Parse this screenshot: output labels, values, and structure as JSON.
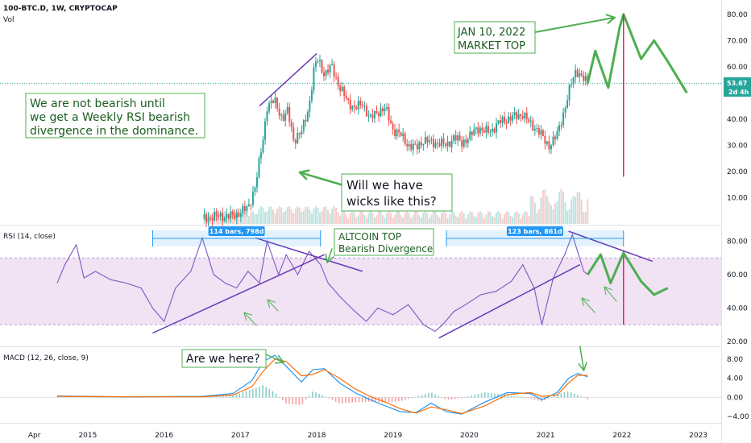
{
  "header": {
    "symbol_title": "100-BTC.D, 1W, CRYPTOCAP",
    "volume_label": "Vol"
  },
  "price_badge": {
    "value": "53.67",
    "timer": "2d 4h",
    "color": "#26a69a"
  },
  "colors": {
    "up": "#26a69a",
    "down": "#ef5350",
    "rsi_line": "#7e57c2",
    "rsi_band": "#e1bee7",
    "macd_line": "#2196f3",
    "signal_line": "#ff6d00",
    "annotation_green": "#4caf50",
    "trend_purple": "#673ab7",
    "market_top_red": "#e91e63"
  },
  "annotations": {
    "not_bearish": [
      "We are not bearish until",
      "we get a Weekly RSI bearish",
      "divergence in the dominance."
    ],
    "market_top": [
      "JAN 10, 2022",
      "MARKET TOP"
    ],
    "wicks": [
      "Will we have",
      "wicks like this?"
    ],
    "altcoin_top": [
      "ALTCOIN TOP",
      "Bearish Divergence"
    ],
    "are_we_here": "Are we here?"
  },
  "range_tags": {
    "first": "114 bars, 798d",
    "second": "123 bars, 861d"
  },
  "chart_data": [
    {
      "type": "line",
      "pane": "price",
      "title": "100-BTC.D, 1W, CRYPTOCAP",
      "y_ticks": [
        "80.00",
        "70.00",
        "60.00",
        "50.00",
        "40.00",
        "30.00",
        "20.00",
        "10.00"
      ],
      "y_tick_values": [
        80,
        70,
        60,
        50,
        40,
        30,
        20,
        10
      ],
      "ylim": [
        0,
        83
      ],
      "x_ticks": [
        "Apr",
        "2015",
        "2016",
        "2017",
        "2018",
        "2019",
        "2020",
        "2021",
        "2022",
        "2023"
      ],
      "x_tick_values": [
        2014.3,
        2015,
        2016,
        2017,
        2018,
        2019,
        2020,
        2021,
        2022,
        2023
      ],
      "xlim": [
        2013.85,
        2023.3
      ],
      "series": [
        {
          "x": [
            2016.5,
            2016.7,
            2016.9,
            2017.1,
            2017.2,
            2017.3,
            2017.35,
            2017.45,
            2017.55,
            2017.62,
            2017.7,
            2017.8,
            2017.9,
            2017.97,
            2018.02,
            2018.1,
            2018.2,
            2018.3,
            2018.4,
            2018.5,
            2018.6,
            2018.7,
            2018.8,
            2018.9,
            2019.0,
            2019.1,
            2019.2,
            2019.3,
            2019.4,
            2019.5,
            2019.6,
            2019.7,
            2019.8,
            2019.9,
            2020.0,
            2020.1,
            2020.2,
            2020.3,
            2020.4,
            2020.5,
            2020.6,
            2020.7,
            2020.8,
            2020.9,
            2021.0,
            2021.05,
            2021.15,
            2021.25,
            2021.32,
            2021.4,
            2021.5,
            2021.55
          ],
          "values": [
            2,
            3,
            3,
            6,
            15,
            33,
            45,
            47,
            40,
            43,
            32,
            35,
            45,
            60,
            63,
            57,
            60,
            52,
            47,
            44,
            46,
            40,
            43,
            44,
            36,
            34,
            30,
            29,
            32,
            31,
            31,
            30,
            33,
            31,
            33,
            37,
            35,
            36,
            39,
            40,
            41,
            42,
            38,
            36,
            31,
            30,
            34,
            44,
            52,
            59,
            55,
            53.67
          ]
        }
      ],
      "projection": {
        "x": [
          2021.55,
          2021.65,
          2021.82,
          2021.97,
          2022.02,
          2022.25,
          2022.42,
          2022.6,
          2022.85
        ],
        "values": [
          53.67,
          66,
          52,
          75,
          80,
          63,
          70,
          62,
          50
        ]
      },
      "market_top_x": 2022.02,
      "last_value": 53.67
    },
    {
      "type": "line",
      "pane": "rsi",
      "title": "RSI (14, close)",
      "y_ticks": [
        "80.00",
        "60.00",
        "40.00",
        "20.00"
      ],
      "y_tick_values": [
        80,
        60,
        40,
        20
      ],
      "ylim": [
        18,
        88
      ],
      "band": [
        30,
        70
      ],
      "series": [
        {
          "name": "RSI",
          "x": [
            2014.6,
            2014.7,
            2014.85,
            2014.95,
            2015.1,
            2015.3,
            2015.5,
            2015.7,
            2015.85,
            2016.0,
            2016.15,
            2016.35,
            2016.5,
            2016.65,
            2016.8,
            2016.95,
            2017.1,
            2017.25,
            2017.35,
            2017.5,
            2017.6,
            2017.75,
            2017.9,
            2018.05,
            2018.15,
            2018.3,
            2018.5,
            2018.65,
            2018.8,
            2019.0,
            2019.2,
            2019.4,
            2019.55,
            2019.65,
            2019.8,
            2019.95,
            2020.15,
            2020.35,
            2020.55,
            2020.7,
            2020.85,
            2020.95,
            2021.1,
            2021.25,
            2021.35,
            2021.5,
            2021.55
          ],
          "values": [
            55,
            66,
            78,
            58,
            62,
            57,
            55,
            52,
            40,
            32,
            52,
            62,
            82,
            60,
            55,
            52,
            62,
            55,
            80,
            60,
            72,
            60,
            74,
            66,
            55,
            47,
            38,
            32,
            40,
            36,
            42,
            30,
            26,
            30,
            38,
            42,
            48,
            50,
            56,
            66,
            52,
            30,
            58,
            72,
            84,
            62,
            60
          ]
        }
      ],
      "projection": {
        "x": [
          2021.55,
          2021.72,
          2021.85,
          2022.02,
          2022.25,
          2022.42,
          2022.6
        ],
        "values": [
          60,
          72,
          55,
          73,
          56,
          48,
          52
        ]
      },
      "range_tag_values": [
        "114 bars, 798d",
        "123 bars, 861d"
      ]
    },
    {
      "type": "line",
      "pane": "macd",
      "title": "MACD (12, 26, close, 9)",
      "y_ticks": [
        "8.00",
        "4.00",
        "0.00",
        "−4.00"
      ],
      "y_tick_values": [
        8,
        4,
        0,
        -4
      ],
      "ylim": [
        -5,
        10
      ],
      "series": [
        {
          "name": "MACD",
          "x": [
            2014.6,
            2015.5,
            2016.5,
            2016.9,
            2017.15,
            2017.3,
            2017.45,
            2017.6,
            2017.8,
            2017.95,
            2018.1,
            2018.3,
            2018.5,
            2018.7,
            2018.9,
            2019.1,
            2019.3,
            2019.5,
            2019.7,
            2019.9,
            2020.2,
            2020.5,
            2020.8,
            2020.95,
            2021.15,
            2021.3,
            2021.42,
            2021.55
          ],
          "values": [
            0.3,
            0.1,
            0.2,
            0.8,
            3.5,
            7.5,
            8.8,
            6.5,
            3.2,
            5.8,
            6.0,
            3.0,
            1.0,
            -0.5,
            -1.8,
            -3.0,
            -3.2,
            -1.2,
            -3.0,
            -3.5,
            -1.0,
            1.0,
            0.8,
            -0.5,
            1.0,
            4.0,
            5.0,
            4.3
          ]
        },
        {
          "name": "Signal",
          "x": [
            2014.6,
            2015.5,
            2016.5,
            2016.9,
            2017.15,
            2017.3,
            2017.45,
            2017.6,
            2017.8,
            2017.95,
            2018.1,
            2018.3,
            2018.5,
            2018.7,
            2018.9,
            2019.1,
            2019.3,
            2019.5,
            2019.7,
            2019.9,
            2020.2,
            2020.5,
            2020.8,
            2020.95,
            2021.15,
            2021.3,
            2021.42,
            2021.55
          ],
          "values": [
            0.2,
            0.1,
            0.1,
            0.5,
            2.2,
            5.5,
            8.0,
            7.5,
            4.5,
            4.8,
            5.8,
            4.0,
            1.8,
            0.2,
            -1.0,
            -2.4,
            -3.3,
            -2.0,
            -2.6,
            -3.4,
            -1.8,
            0.6,
            1.0,
            0.2,
            0.5,
            3.0,
            4.6,
            4.6
          ]
        }
      ]
    }
  ]
}
